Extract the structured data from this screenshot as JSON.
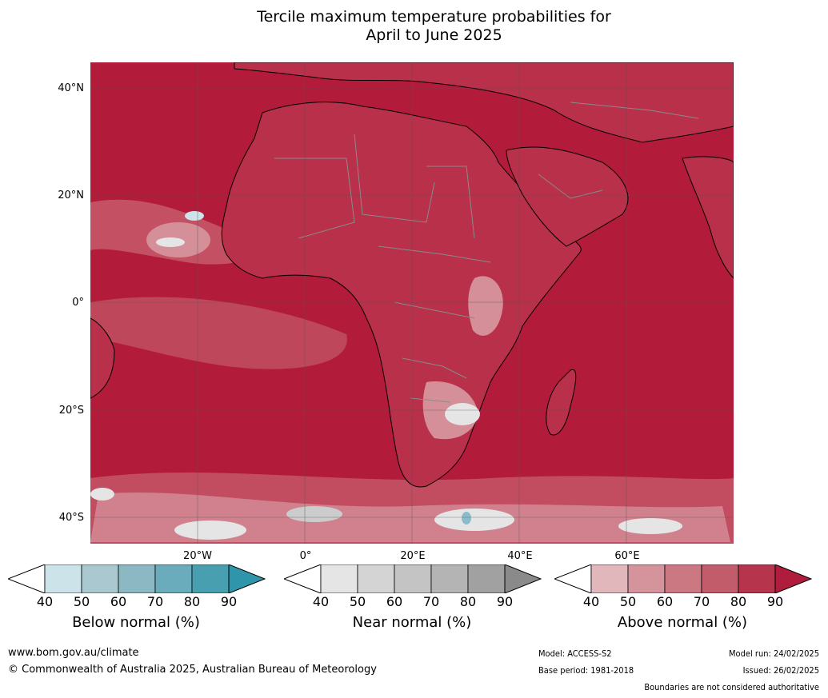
{
  "title_line1": "Tercile maximum temperature probabilities for",
  "title_line2": "April to June 2025",
  "map": {
    "lat_labels": [
      "40°N",
      "20°N",
      "0°",
      "20°S",
      "40°S"
    ],
    "lon_labels": [
      "20°W",
      "0°",
      "20°E",
      "40°E",
      "60°E"
    ],
    "colors": {
      "ocean_above": "#b31b3b",
      "land_above": "#b8304a",
      "mid_above": "#c55a6b",
      "light_above": "#d58f99",
      "pale_above": "#e3b9bf",
      "near_light": "#e5e5e5",
      "near_mid": "#cccccc",
      "below_light": "#cce3ea",
      "below_mid": "#8bbccb",
      "coast": "#000000",
      "borders": "#8a8a8a",
      "grid": "#555555"
    }
  },
  "colorbars": [
    {
      "title": "Below normal (%)",
      "ticks": [
        "40",
        "50",
        "60",
        "70",
        "80",
        "90"
      ],
      "colors": [
        "#cce3ea",
        "#a9c8cf",
        "#8bb8c3",
        "#6aacbb",
        "#489fb0",
        "#2f95aa"
      ]
    },
    {
      "title": "Near normal (%)",
      "ticks": [
        "40",
        "50",
        "60",
        "70",
        "80",
        "90"
      ],
      "colors": [
        "#e5e5e5",
        "#d4d4d4",
        "#c4c4c4",
        "#b4b4b4",
        "#a1a1a1",
        "#8a8a8a"
      ]
    },
    {
      "title": "Above normal (%)",
      "ticks": [
        "40",
        "50",
        "60",
        "70",
        "80",
        "90"
      ],
      "colors": [
        "#e1b7bc",
        "#d5939c",
        "#cc7883",
        "#c25c6b",
        "#b7354c",
        "#b01c3c"
      ]
    }
  ],
  "footer": {
    "url": "www.bom.gov.au/climate",
    "copyright": "© Commonwealth of Australia 2025, Australian Bureau of Meteorology",
    "model": "Model: ACCESS-S2",
    "base_period": "Base period: 1981-2018",
    "model_run": "Model run: 24/02/2025",
    "issued": "Issued: 26/02/2025",
    "disclaimer": "Boundaries are not considered authoritative"
  }
}
